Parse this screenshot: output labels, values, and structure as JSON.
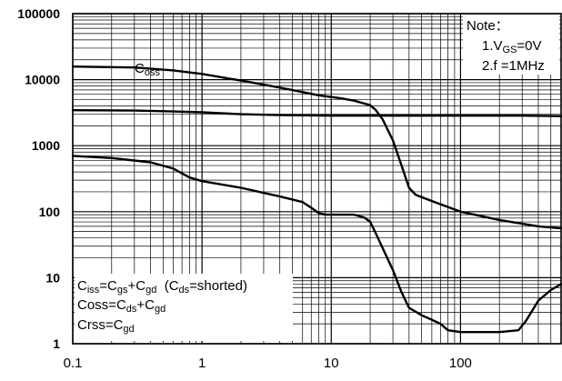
{
  "chart_data": {
    "type": "line",
    "x_scale": "log",
    "y_scale": "log",
    "xlim": [
      0.1,
      600
    ],
    "ylim": [
      1,
      100000
    ],
    "grid": true,
    "x_ticks": [
      0.1,
      1,
      10,
      100
    ],
    "x_tick_labels": [
      "0.1",
      "1",
      "10",
      "100"
    ],
    "y_ticks": [
      1,
      10,
      100,
      1000,
      10000,
      100000
    ],
    "y_tick_labels": [
      "1",
      "10",
      "100",
      "1000",
      "10000",
      "100000"
    ],
    "series": [
      {
        "name": "Coss",
        "color": "#000000",
        "points": [
          [
            0.1,
            15800
          ],
          [
            0.3,
            15300
          ],
          [
            0.6,
            13800
          ],
          [
            1,
            12200
          ],
          [
            2,
            9700
          ],
          [
            4,
            7600
          ],
          [
            8,
            5800
          ],
          [
            12,
            5200
          ],
          [
            15,
            4800
          ],
          [
            20,
            4100
          ],
          [
            22,
            3500
          ],
          [
            25,
            2500
          ],
          [
            30,
            1200
          ],
          [
            35,
            500
          ],
          [
            40,
            230
          ],
          [
            45,
            180
          ],
          [
            60,
            145
          ],
          [
            100,
            100
          ],
          [
            200,
            75
          ],
          [
            400,
            60
          ],
          [
            600,
            56
          ]
        ]
      },
      {
        "name": "Ciss",
        "color": "#000000",
        "points": [
          [
            0.1,
            3450
          ],
          [
            0.3,
            3400
          ],
          [
            0.6,
            3300
          ],
          [
            1,
            3200
          ],
          [
            2,
            3000
          ],
          [
            4,
            2900
          ],
          [
            10,
            2850
          ],
          [
            30,
            2850
          ],
          [
            100,
            2850
          ],
          [
            300,
            2850
          ],
          [
            600,
            2800
          ]
        ]
      },
      {
        "name": "Crss",
        "color": "#000000",
        "points": [
          [
            0.1,
            700
          ],
          [
            0.2,
            650
          ],
          [
            0.4,
            560
          ],
          [
            0.6,
            450
          ],
          [
            0.8,
            330
          ],
          [
            1,
            290
          ],
          [
            2,
            230
          ],
          [
            4,
            170
          ],
          [
            6,
            140
          ],
          [
            7,
            115
          ],
          [
            8,
            95
          ],
          [
            9,
            90
          ],
          [
            15,
            90
          ],
          [
            18,
            82
          ],
          [
            20,
            70
          ],
          [
            22,
            48
          ],
          [
            25,
            28
          ],
          [
            30,
            13
          ],
          [
            35,
            6
          ],
          [
            40,
            3.5
          ],
          [
            50,
            2.7
          ],
          [
            60,
            2.3
          ],
          [
            70,
            2.0
          ],
          [
            80,
            1.6
          ],
          [
            100,
            1.5
          ],
          [
            200,
            1.5
          ],
          [
            280,
            1.6
          ],
          [
            320,
            2.2
          ],
          [
            400,
            4.5
          ],
          [
            500,
            6.5
          ],
          [
            600,
            8
          ]
        ]
      }
    ],
    "labels": {
      "coss_label_main": "C",
      "coss_label_sub": "oss"
    },
    "note": {
      "title": "Note：",
      "line1_prefix": "1.V",
      "line1_sub": "GS",
      "line1_suffix": "=0V",
      "line2": "2.f =1MHz"
    },
    "legend_box": {
      "ciss_c1": "C",
      "ciss_s1": "iss",
      "ciss_eq": "=C",
      "ciss_s2": "gs",
      "ciss_plus": "+C",
      "ciss_s3": "gd",
      "ciss_paren_open": "  (C",
      "ciss_s4": "ds",
      "ciss_tail": "=shorted)",
      "coss_c1": "Coss",
      "coss_eq": "=C",
      "coss_s1": "ds",
      "coss_plus": "+C",
      "coss_s2": "gd",
      "crss_c1": "Crss",
      "crss_eq": "=C",
      "crss_s1": "gd"
    }
  }
}
